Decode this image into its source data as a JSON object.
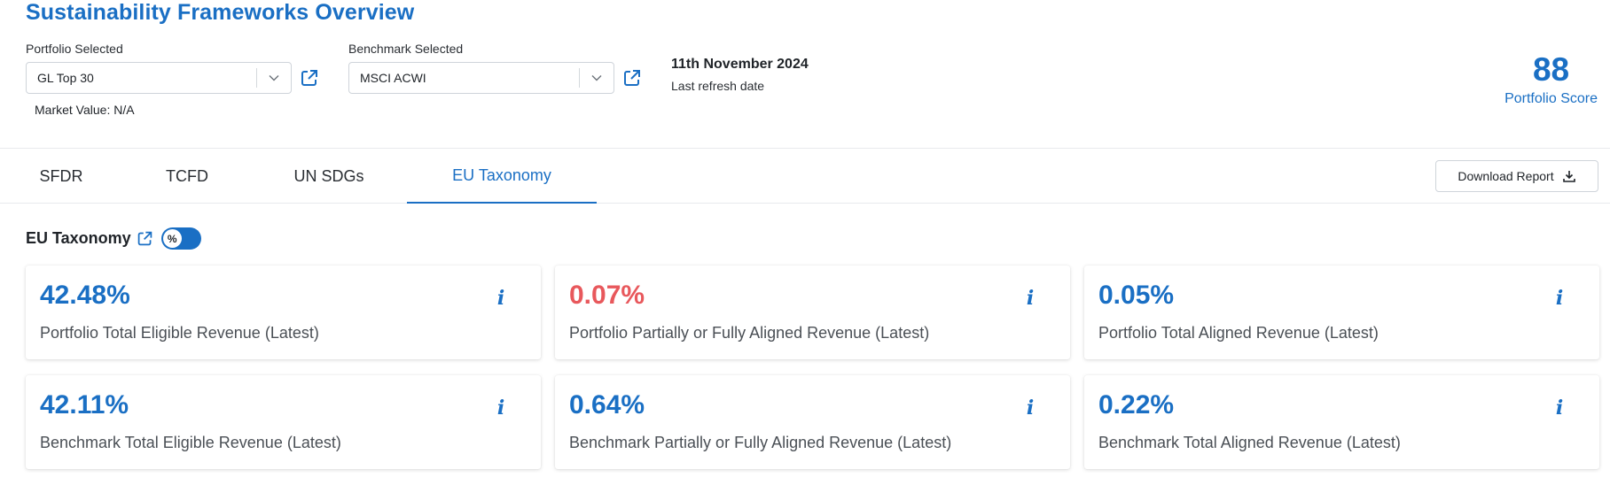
{
  "page": {
    "title": "Sustainability Frameworks Overview"
  },
  "portfolio": {
    "label": "Portfolio Selected",
    "value": "GL Top 30",
    "market_value": "Market Value: N/A"
  },
  "benchmark": {
    "label": "Benchmark Selected",
    "value": "MSCI ACWI"
  },
  "refresh": {
    "date": "11th November 2024",
    "label": "Last refresh date"
  },
  "score": {
    "value": "88",
    "label": "Portfolio Score"
  },
  "tabs": [
    {
      "label": "SFDR",
      "active": false
    },
    {
      "label": "TCFD",
      "active": false
    },
    {
      "label": "UN SDGs",
      "active": false
    },
    {
      "label": "EU Taxonomy",
      "active": true
    }
  ],
  "download": {
    "label": "Download Report",
    "icon": "download-icon"
  },
  "section": {
    "title": "EU Taxonomy",
    "toggle_symbol": "%"
  },
  "cards": [
    {
      "value": "42.48%",
      "label": "Portfolio Total Eligible Revenue (Latest)",
      "status": "normal",
      "info": "i"
    },
    {
      "value": "0.07%",
      "label": "Portfolio Partially or Fully Aligned Revenue (Latest)",
      "status": "negative",
      "info": "i"
    },
    {
      "value": "0.05%",
      "label": "Portfolio Total Aligned Revenue (Latest)",
      "status": "normal",
      "info": "i"
    },
    {
      "value": "42.11%",
      "label": "Benchmark Total Eligible Revenue (Latest)",
      "status": "normal",
      "info": "i"
    },
    {
      "value": "0.64%",
      "label": "Benchmark Partially or Fully Aligned Revenue (Latest)",
      "status": "normal",
      "info": "i"
    },
    {
      "value": "0.22%",
      "label": "Benchmark Total Aligned Revenue (Latest)",
      "status": "normal",
      "info": "i"
    }
  ],
  "colors": {
    "accent": "#1a6fc4",
    "negative": "#e8585c",
    "text": "#1f2328",
    "muted_text": "#4a4f55"
  }
}
